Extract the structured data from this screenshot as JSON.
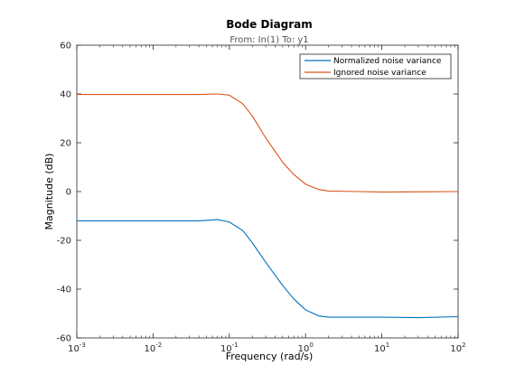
{
  "window": {
    "background": "#ffffff"
  },
  "chart_data": {
    "type": "line",
    "title": "Bode Diagram",
    "subtitle": "From: In(1)  To: y1",
    "xlabel": "Frequency  (rad/s)",
    "ylabel": "Magnitude (dB)",
    "xscale": "log",
    "xlim": [
      0.001,
      100
    ],
    "ylim": [
      -60,
      60
    ],
    "grid": false,
    "legend_position": "top-right",
    "x_ticks": [
      0.001,
      0.01,
      0.1,
      1,
      10,
      100
    ],
    "x_tick_labels": [
      {
        "base": "10",
        "exp": "-3"
      },
      {
        "base": "10",
        "exp": "-2"
      },
      {
        "base": "10",
        "exp": "-1"
      },
      {
        "base": "10",
        "exp": "0"
      },
      {
        "base": "10",
        "exp": "1"
      },
      {
        "base": "10",
        "exp": "2"
      }
    ],
    "y_ticks": [
      -60,
      -40,
      -20,
      0,
      20,
      40,
      60
    ],
    "y_tick_labels": [
      "-60",
      "-40",
      "-20",
      "0",
      "20",
      "40",
      "60"
    ],
    "series": [
      {
        "name": "Normalized noise variance",
        "color": "#0072bd",
        "x": [
          0.001,
          0.01,
          0.04,
          0.07,
          0.1,
          0.15,
          0.2,
          0.3,
          0.5,
          0.7,
          1.0,
          1.5,
          2.0,
          5,
          10,
          30,
          100
        ],
        "y": [
          -12,
          -12,
          -12,
          -11.5,
          -12.5,
          -16,
          -21,
          -29,
          -38.5,
          -44,
          -48.5,
          -51,
          -51.5,
          -51.5,
          -51.5,
          -51.7,
          -51.3
        ]
      },
      {
        "name": "Ignored noise variance",
        "color": "#d95319",
        "x": [
          0.001,
          0.01,
          0.04,
          0.07,
          0.1,
          0.15,
          0.2,
          0.3,
          0.5,
          0.7,
          1.0,
          1.5,
          2.0,
          5,
          10,
          30,
          100
        ],
        "y": [
          39.8,
          39.8,
          39.8,
          40,
          39.5,
          36,
          31,
          22,
          12,
          7,
          3,
          0.8,
          0.2,
          0,
          -0.2,
          -0.1,
          0
        ]
      }
    ]
  }
}
